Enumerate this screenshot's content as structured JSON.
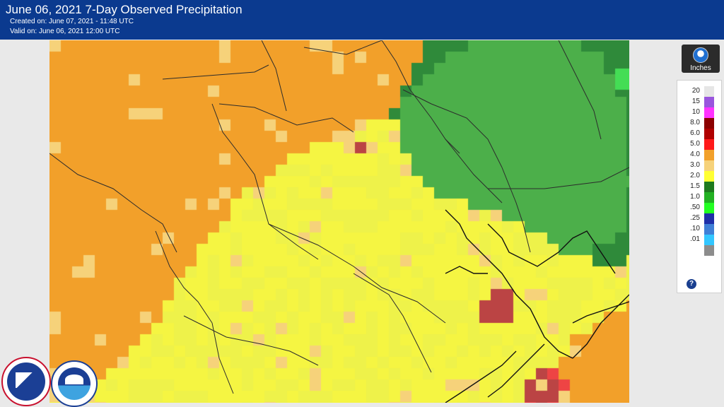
{
  "header": {
    "title": "June 06, 2021 7-Day Observed Precipitation",
    "created": "Created on: June 07, 2021 - 11:48 UTC",
    "valid": "Valid on: June 06, 2021 12:00 UTC"
  },
  "legend": {
    "units": "Inches",
    "entries": [
      {
        "label": "20",
        "color": "#e6e6e6"
      },
      {
        "label": "15",
        "color": "#9955dd"
      },
      {
        "label": "10",
        "color": "#ff33ff"
      },
      {
        "label": "8.0",
        "color": "#8b0000"
      },
      {
        "label": "6.0",
        "color": "#b00000"
      },
      {
        "label": "5.0",
        "color": "#ff1a1a"
      },
      {
        "label": "4.0",
        "color": "#f2a02a"
      },
      {
        "label": "3.0",
        "color": "#f6d27a"
      },
      {
        "label": "2.0",
        "color": "#ffff33"
      },
      {
        "label": "1.5",
        "color": "#1e7a1e"
      },
      {
        "label": "1.0",
        "color": "#22b122"
      },
      {
        "label": ".50",
        "color": "#22ff22"
      },
      {
        "label": ".25",
        "color": "#1f2fa8"
      },
      {
        "label": ".10",
        "color": "#3f7fd6"
      },
      {
        "label": ".01",
        "color": "#33c6ff"
      },
      {
        "label": "",
        "color": "#8c8c8c"
      }
    ],
    "help_glyph": "?"
  },
  "icons": [
    "noaa-icon",
    "help-icon",
    "nws-logo",
    "noaa-logo"
  ]
}
